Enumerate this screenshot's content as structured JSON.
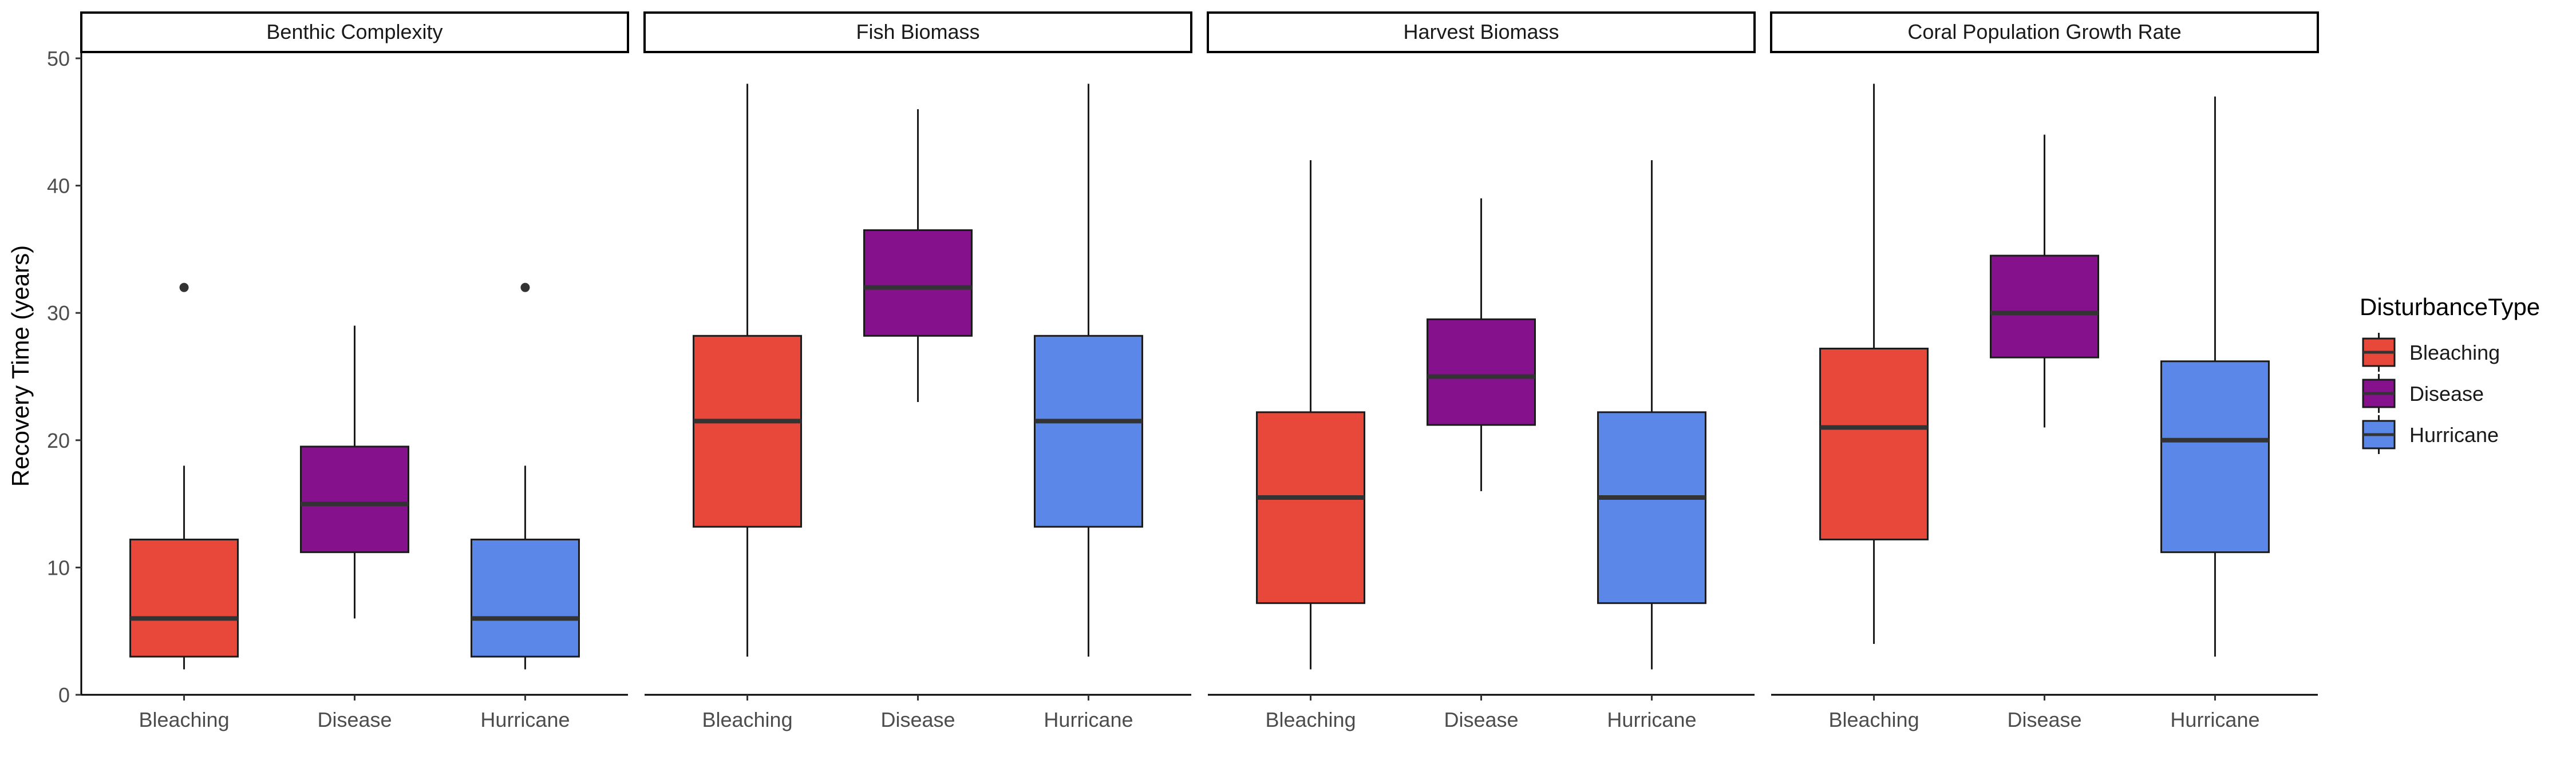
{
  "chart_data": {
    "type": "boxplot",
    "facet_layout": "1 row x 4 panels",
    "grid": false,
    "y_axis": {
      "label": "Recovery Time (years)",
      "range": [
        0,
        50
      ],
      "ticks": [
        "0",
        "10",
        "20",
        "30",
        "40",
        "50"
      ]
    },
    "categories": [
      "Bleaching",
      "Disease",
      "Hurricane"
    ],
    "legend": {
      "title": "DisturbanceType",
      "placement": "right",
      "entries": [
        {
          "label": "Bleaching",
          "color": "#E8483A"
        },
        {
          "label": "Disease",
          "color": "#86118C"
        },
        {
          "label": "Hurricane",
          "color": "#5B87E9"
        }
      ]
    },
    "panels": [
      {
        "title": "Benthic Complexity",
        "boxes": [
          {
            "category": "Bleaching",
            "whisker_low": 2,
            "q1": 3,
            "median": 6,
            "q3": 12.2,
            "whisker_high": 18,
            "outliers": [
              32
            ]
          },
          {
            "category": "Disease",
            "whisker_low": 6,
            "q1": 11.2,
            "median": 15,
            "q3": 19.5,
            "whisker_high": 29,
            "outliers": []
          },
          {
            "category": "Hurricane",
            "whisker_low": 2,
            "q1": 3,
            "median": 6,
            "q3": 12.2,
            "whisker_high": 18,
            "outliers": [
              32
            ]
          }
        ]
      },
      {
        "title": "Fish Biomass",
        "boxes": [
          {
            "category": "Bleaching",
            "whisker_low": 3,
            "q1": 13.2,
            "median": 21.5,
            "q3": 28.2,
            "whisker_high": 48,
            "outliers": []
          },
          {
            "category": "Disease",
            "whisker_low": 23,
            "q1": 28.2,
            "median": 32,
            "q3": 36.5,
            "whisker_high": 46,
            "outliers": []
          },
          {
            "category": "Hurricane",
            "whisker_low": 3,
            "q1": 13.2,
            "median": 21.5,
            "q3": 28.2,
            "whisker_high": 48,
            "outliers": []
          }
        ]
      },
      {
        "title": "Harvest Biomass",
        "boxes": [
          {
            "category": "Bleaching",
            "whisker_low": 2,
            "q1": 7.2,
            "median": 15.5,
            "q3": 22.2,
            "whisker_high": 42,
            "outliers": []
          },
          {
            "category": "Disease",
            "whisker_low": 16,
            "q1": 21.2,
            "median": 25,
            "q3": 29.5,
            "whisker_high": 39,
            "outliers": []
          },
          {
            "category": "Hurricane",
            "whisker_low": 2,
            "q1": 7.2,
            "median": 15.5,
            "q3": 22.2,
            "whisker_high": 42,
            "outliers": []
          }
        ]
      },
      {
        "title": "Coral Population Growth Rate",
        "boxes": [
          {
            "category": "Bleaching",
            "whisker_low": 4,
            "q1": 12.2,
            "median": 21,
            "q3": 27.2,
            "whisker_high": 48,
            "outliers": []
          },
          {
            "category": "Disease",
            "whisker_low": 21,
            "q1": 26.5,
            "median": 30,
            "q3": 34.5,
            "whisker_high": 44,
            "outliers": []
          },
          {
            "category": "Hurricane",
            "whisker_low": 3,
            "q1": 11.2,
            "median": 20,
            "q3": 26.2,
            "whisker_high": 47,
            "outliers": []
          }
        ]
      }
    ]
  }
}
